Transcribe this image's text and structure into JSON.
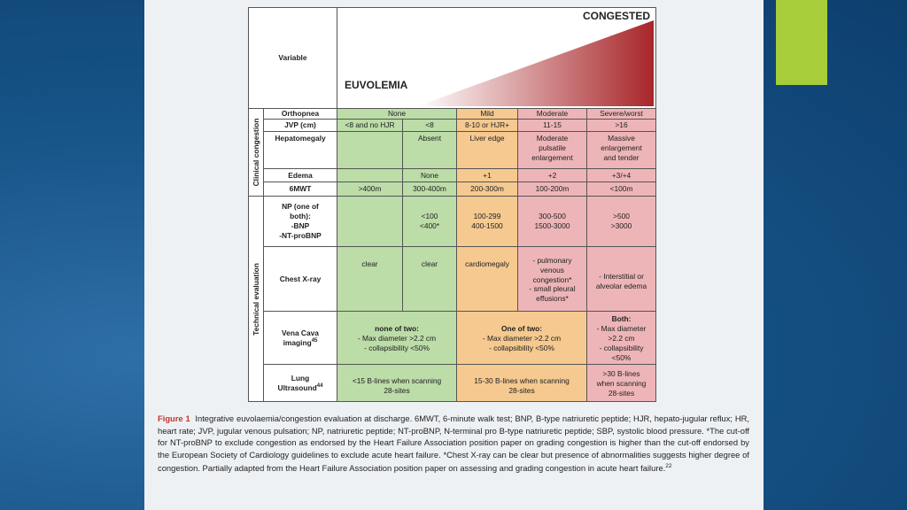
{
  "colors": {
    "euvolemia": "#bcdca8",
    "mild": "#f5c98f",
    "congested": "#eeb5b8",
    "accent": "#a7cd3a"
  },
  "header": {
    "variable": "Variable",
    "euvolemia": "EUVOLEMIA",
    "congested": "CONGESTED"
  },
  "groups": {
    "clinical": "Clinical congestion",
    "technical": "Technical evaluation"
  },
  "rows": {
    "orthopnea": {
      "label": "Orthopnea",
      "none": "None",
      "mild": "Mild",
      "moderate": "Moderate",
      "severe": "Severe/worst"
    },
    "jvp": {
      "label": "JVP (cm)",
      "c1": "<8 and no HJR",
      "c2": "<8",
      "c3": "8-10 or HJR+",
      "c4": "11-15",
      "c5": ">16"
    },
    "hepatomegaly": {
      "label": "Hepatomegaly",
      "c2": "Absent",
      "c3": "Liver edge",
      "c4": "Moderate pulsatile enlargement",
      "c5": "Massive enlargement and tender"
    },
    "edema": {
      "label": "Edema",
      "c2": "None",
      "c3": "+1",
      "c4": "+2",
      "c5": "+3/+4"
    },
    "smwt": {
      "label": "6MWT",
      "c1": ">400m",
      "c2": "300-400m",
      "c3": "200-300m",
      "c4": "100-200m",
      "c5": "<100m"
    },
    "np": {
      "label_1": "NP (one of",
      "label_2": "both):",
      "label_3": "-BNP",
      "label_4": "-NT-proBNP",
      "c2_1": "<100",
      "c2_2": "<400*",
      "c3_1": "100-299",
      "c3_2": "400-1500",
      "c4_1": "300-500",
      "c4_2": "1500-3000",
      "c5_1": ">500",
      "c5_2": ">3000"
    },
    "xray": {
      "label": "Chest X-ray",
      "c1": "clear",
      "c2": "clear",
      "c3": "cardiomegaly",
      "c4_1": "- pulmonary",
      "c4_2": "venous",
      "c4_3": "congestion*",
      "c4_4": "- small pleural",
      "c4_5": "effusions*",
      "c5_1": "- Interstitial or",
      "c5_2": "alveolar edema"
    },
    "vena": {
      "label_1": "Vena Cava",
      "label_2": "imaging",
      "ref": "45",
      "g_1": "none of two:",
      "g_2": "- Max diameter >2.2 cm",
      "g_3": "- collapsibility <50%",
      "o_1": "One of two:",
      "o_2": "- Max diameter >2.2 cm",
      "o_3": "- collapsibility <50%",
      "p_1": "Both:",
      "p_2": "- Max diameter",
      "p_3": ">2.2 cm",
      "p_4": "- collapsibility",
      "p_5": "<50%"
    },
    "lung": {
      "label_1": "Lung",
      "label_2": "Ultrasound",
      "ref": "44",
      "g_1": "<15 B-lines when scanning",
      "g_2": "28-sites",
      "o_1": "15-30 B-lines when scanning",
      "o_2": "28-sites",
      "p_1": ">30 B-lines",
      "p_2": "when scanning",
      "p_3": "28-sites"
    }
  },
  "caption": {
    "figure_label": "Figure 1",
    "text": "Integrative euvolaemia/congestion evaluation at discharge. 6MWT, 6-minute walk test; BNP, B-type natriuretic peptide; HJR, hepato-jugular reflux; HR, heart rate; JVP, jugular venous pulsation; NP, natriuretic peptide; NT-proBNP, N-terminal pro B-type natriuretic peptide; SBP, systolic blood pressure. *The cut-off for NT-proBNP to exclude congestion as endorsed by the Heart Failure Association position paper on grading congestion is higher than the cut-off endorsed by the European Society of Cardiology guidelines to exclude acute heart failure. *Chest X-ray can be clear but presence of abnormalities suggests higher degree of congestion. Partially adapted from the Heart Failure Association position paper on assessing and grading congestion in acute heart failure.",
    "ref": "22"
  }
}
